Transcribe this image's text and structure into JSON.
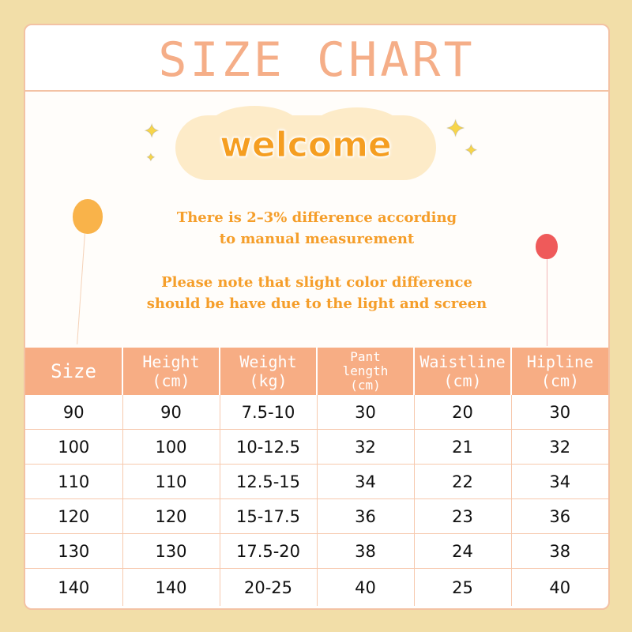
{
  "title": "SIZE CHART",
  "welcome": "welcome",
  "notes": [
    [
      "There is 2–3% difference according",
      "to manual measurement"
    ],
    [
      "Please note that slight color difference",
      "should be have due to the light and screen"
    ]
  ],
  "colors": {
    "background": "#f2dea8",
    "header": "#f7ad84",
    "title": "#f5ae88",
    "accent": "#f59e21"
  },
  "table": {
    "headers": [
      [
        "Size"
      ],
      [
        "Height",
        "(cm)"
      ],
      [
        "Weight",
        "(kg)"
      ],
      [
        "Pant",
        "length",
        "(cm)"
      ],
      [
        "Waistline",
        "(cm)"
      ],
      [
        "Hipline",
        "(cm)"
      ]
    ],
    "rows": [
      [
        "90",
        "90",
        "7.5-10",
        "30",
        "20",
        "30"
      ],
      [
        "100",
        "100",
        "10-12.5",
        "32",
        "21",
        "32"
      ],
      [
        "110",
        "110",
        "12.5-15",
        "34",
        "22",
        "34"
      ],
      [
        "120",
        "120",
        "15-17.5",
        "36",
        "23",
        "36"
      ],
      [
        "130",
        "130",
        "17.5-20",
        "38",
        "24",
        "38"
      ],
      [
        "140",
        "140",
        "20-25",
        "40",
        "25",
        "40"
      ]
    ]
  }
}
